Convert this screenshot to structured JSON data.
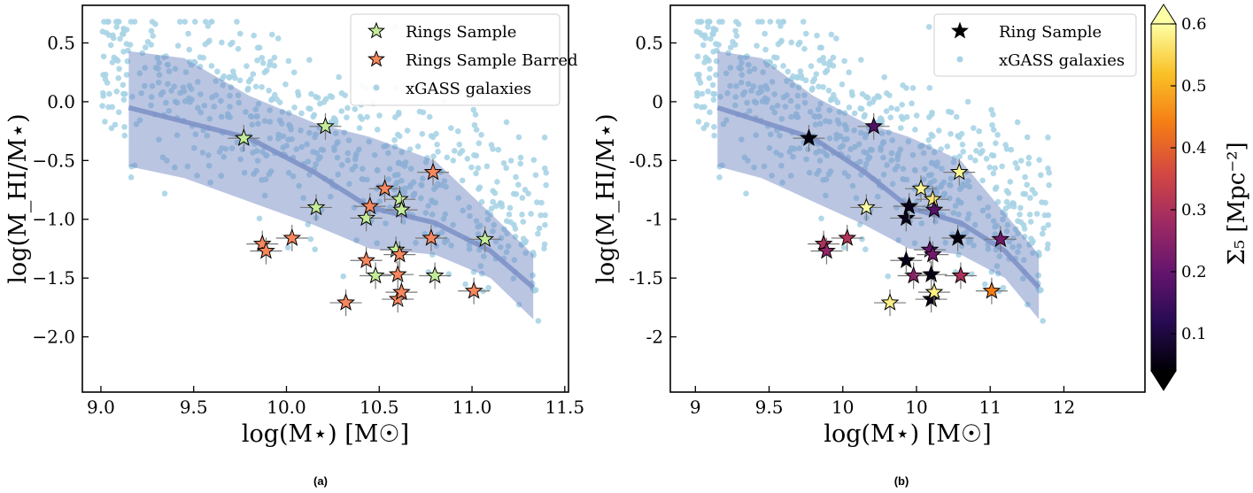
{
  "panel_labels": [
    "(a)",
    "(b)"
  ],
  "colorbar": {
    "label": "Σ₅ [Mpc⁻²]",
    "min": 0.04,
    "max": 0.6,
    "ticks": [
      "0.1",
      "0.2",
      "0.3",
      "0.4",
      "0.5",
      "0.6"
    ],
    "extend": "both",
    "cmap": "inferno"
  },
  "colors": {
    "xgass": "#a9d4e6",
    "band": "#6f86c3",
    "median": "#7f92c8",
    "green": "#c4ec9a",
    "orange": "#f7875e"
  },
  "chart_data": [
    {
      "type": "scatter",
      "panel": "a",
      "xlabel": "log(M⋆) [M☉]",
      "ylabel": "log(M_HI/M⋆)",
      "xlim": [
        8.9,
        11.52
      ],
      "ylim": [
        -2.47,
        0.82
      ],
      "xticks": [
        "9.0",
        "9.5",
        "10.0",
        "10.5",
        "11.0",
        "11.5"
      ],
      "yticks": [
        "0.5",
        "0.0",
        "−0.5",
        "−1.0",
        "−1.5",
        "−2.0"
      ],
      "legend": [
        "Rings Sample",
        "Rings Sample Barred",
        "xGASS galaxies"
      ],
      "legend_position": "top-right",
      "series": [
        {
          "name": "Rings Sample",
          "marker": "star",
          "color": "#c4ec9a",
          "points": [
            [
              9.77,
              -0.31
            ],
            [
              10.21,
              -0.21
            ],
            [
              10.16,
              -0.9
            ],
            [
              10.43,
              -0.99
            ],
            [
              10.48,
              -1.48
            ],
            [
              10.59,
              -1.26
            ],
            [
              10.61,
              -0.83
            ],
            [
              10.62,
              -0.92
            ],
            [
              10.8,
              -1.48
            ],
            [
              11.07,
              -1.17
            ]
          ]
        },
        {
          "name": "Rings Sample Barred",
          "marker": "star",
          "color": "#f7875e",
          "points": [
            [
              9.87,
              -1.21
            ],
            [
              9.89,
              -1.27
            ],
            [
              10.03,
              -1.16
            ],
            [
              10.32,
              -1.71
            ],
            [
              10.43,
              -1.35
            ],
            [
              10.45,
              -0.89
            ],
            [
              10.53,
              -0.74
            ],
            [
              10.6,
              -1.47
            ],
            [
              10.6,
              -1.68
            ],
            [
              10.61,
              -1.3
            ],
            [
              10.62,
              -1.62
            ],
            [
              10.78,
              -1.16
            ],
            [
              10.79,
              -0.6
            ],
            [
              11.01,
              -1.61
            ]
          ]
        }
      ]
    },
    {
      "type": "scatter",
      "panel": "b",
      "xlabel": "log(M⋆) [M☉]",
      "ylabel": "log(M_HI/M⋆)",
      "xlim": [
        8.83,
        12.05
      ],
      "ylim": [
        -2.47,
        0.82
      ],
      "xticks": [
        "9",
        "9.5",
        "10",
        "10",
        "11",
        "12"
      ],
      "yticks": [
        "0.5",
        "0",
        "-0.5",
        "-1",
        "-1.5",
        "-2"
      ],
      "legend": [
        "Ring Sample",
        "xGASS galaxies"
      ],
      "legend_position": "top-right",
      "series": [
        {
          "name": "Ring Sample",
          "marker": "star",
          "colored_by": "Σ5",
          "points": [
            [
              9.77,
              -0.31,
              0.05
            ],
            [
              10.21,
              -0.21,
              0.17
            ],
            [
              10.16,
              -0.9,
              0.6
            ],
            [
              10.43,
              -0.99,
              0.06
            ],
            [
              10.48,
              -1.48,
              0.25
            ],
            [
              10.59,
              -1.26,
              0.2
            ],
            [
              10.61,
              -0.83,
              0.57
            ],
            [
              10.62,
              -0.92,
              0.18
            ],
            [
              10.8,
              -1.48,
              0.3
            ],
            [
              11.07,
              -1.17,
              0.22
            ],
            [
              9.87,
              -1.21,
              0.3
            ],
            [
              9.89,
              -1.27,
              0.26
            ],
            [
              10.03,
              -1.16,
              0.31
            ],
            [
              10.32,
              -1.71,
              0.58
            ],
            [
              10.43,
              -1.35,
              0.06
            ],
            [
              10.45,
              -0.89,
              0.06
            ],
            [
              10.53,
              -0.74,
              0.59
            ],
            [
              10.6,
              -1.47,
              0.06
            ],
            [
              10.6,
              -1.68,
              0.06
            ],
            [
              10.61,
              -1.3,
              0.22
            ],
            [
              10.62,
              -1.62,
              0.58
            ],
            [
              10.78,
              -1.16,
              0.05
            ],
            [
              10.79,
              -0.6,
              0.59
            ],
            [
              11.01,
              -1.61,
              0.44
            ]
          ]
        }
      ]
    }
  ]
}
